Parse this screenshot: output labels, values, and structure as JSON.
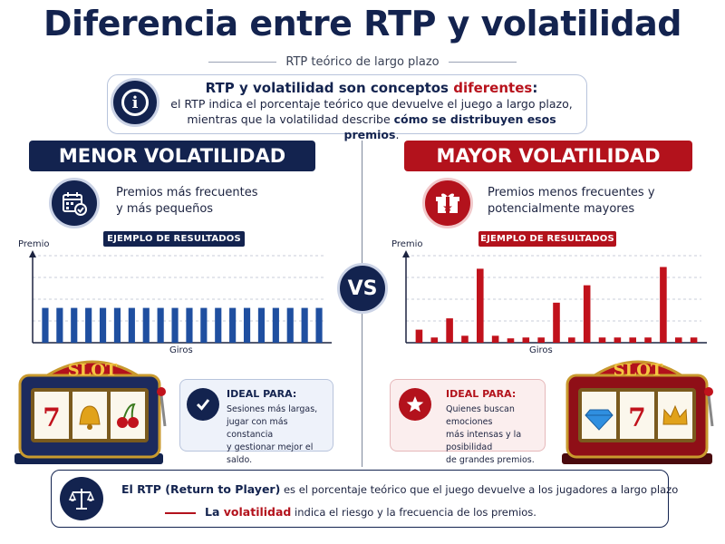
{
  "title": "Diferencia entre RTP y volatilidad",
  "subtitle": "RTP teórico de largo plazo",
  "info": {
    "head_start": "RTP y volatilidad son conceptos ",
    "head_highlight": "diferentes",
    "head_end": ":",
    "line1": "el RTP indica el porcentaje teórico que devuelve el juego a largo plazo,",
    "line2_start": "mientras que la volatilidad describe ",
    "line2_bold": "cómo se distribuyen esos premios",
    "line2_end": "."
  },
  "vs_label": "VS",
  "low": {
    "banner": "MENOR VOLATILIDAD",
    "feature_line1": "Premios más frecuentes",
    "feature_line2": "y más pequeños",
    "example_label": "EJEMPLO DE RESULTADOS",
    "y_label": "Premio",
    "x_label": "Giros",
    "slot_sign": "SLOT",
    "slot_symbols": [
      "7",
      "bell",
      "cherry"
    ],
    "ideal_head": "IDEAL PARA:",
    "ideal_line1": "Sesiones más largas,",
    "ideal_line2": "jugar con más constancia",
    "ideal_line3": "y gestionar mejor el saldo.",
    "color": "#13234f"
  },
  "high": {
    "banner": "MAYOR VOLATILIDAD",
    "feature_line1": "Premios menos frecuentes y",
    "feature_line2": "potencialmente mayores",
    "example_label": "EJEMPLO DE RESULTADOS",
    "y_label": "Premio",
    "x_label": "Giros",
    "slot_sign": "SLOT",
    "slot_symbols": [
      "diamond",
      "7",
      "crown"
    ],
    "ideal_head": "IDEAL PARA:",
    "ideal_line1": "Quienes buscan emociones",
    "ideal_line2": "más intensas y la posibilidad",
    "ideal_line3": "de grandes premios.",
    "color": "#b3121c"
  },
  "chart_data": [
    {
      "type": "bar",
      "xlabel": "Giros",
      "ylabel": "Premio",
      "values": [
        4,
        4,
        4,
        4,
        4,
        4,
        4,
        4,
        4,
        4,
        4,
        4,
        4,
        4,
        4,
        4,
        4,
        4,
        4,
        4
      ],
      "ylim": [
        0,
        10
      ],
      "grid": true,
      "color": "#1f4fa0"
    },
    {
      "type": "bar",
      "xlabel": "Giros",
      "ylabel": "Premio",
      "values": [
        1.5,
        0.6,
        2.8,
        0.8,
        8.5,
        0.8,
        0.5,
        0.6,
        0.6,
        4.6,
        0.6,
        6.6,
        0.6,
        0.6,
        0.6,
        0.6,
        8.7,
        0.6,
        0.6
      ],
      "ylim": [
        0,
        10
      ],
      "grid": true,
      "color": "#c1121c"
    }
  ],
  "bottom": {
    "line1_bold": "El RTP (Return to Player)",
    "line1_rest": " es el porcentaje teórico que el juego devuelve a los jugadores a largo plazo",
    "line2_lead": "La ",
    "line2_bold": "volatilidad",
    "line2_rest": " indica el riesgo y la frecuencia de los premios."
  }
}
